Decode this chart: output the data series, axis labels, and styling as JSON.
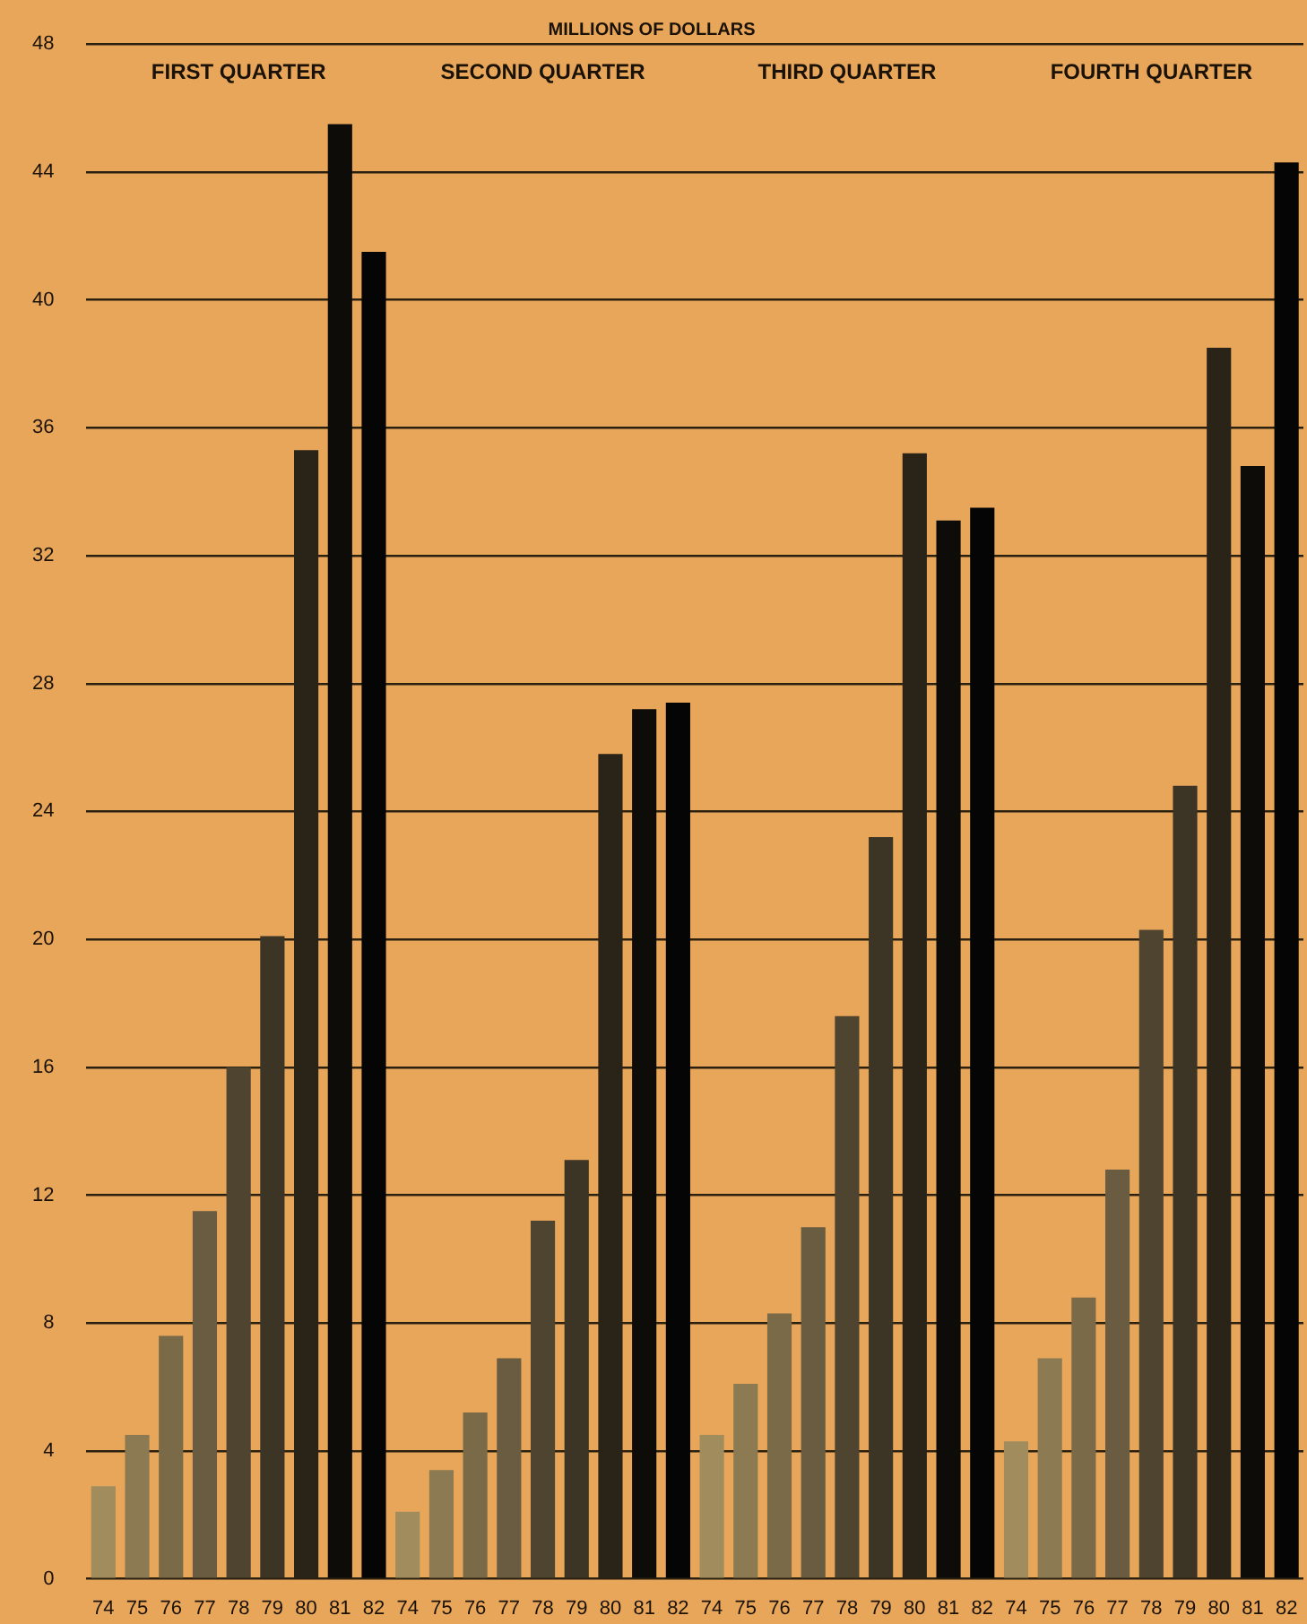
{
  "chart_data": {
    "type": "bar",
    "title": "MILLIONS OF DOLLARS",
    "categories": [
      "74",
      "75",
      "76",
      "77",
      "78",
      "79",
      "80",
      "81",
      "82",
      "74",
      "75",
      "76",
      "77",
      "78",
      "79",
      "80",
      "81",
      "82",
      "74",
      "75",
      "76",
      "77",
      "78",
      "79",
      "80",
      "81",
      "82",
      "74",
      "75",
      "76",
      "77",
      "78",
      "79",
      "80",
      "81",
      "82"
    ],
    "values": [
      2.9,
      4.5,
      7.6,
      11.5,
      16.0,
      20.1,
      35.3,
      45.5,
      41.5,
      2.1,
      3.4,
      5.2,
      6.9,
      11.2,
      13.1,
      25.8,
      27.2,
      27.4,
      4.5,
      6.1,
      8.3,
      11.0,
      17.6,
      23.2,
      35.2,
      33.1,
      33.5,
      4.3,
      6.9,
      8.8,
      12.8,
      20.3,
      24.8,
      38.5,
      34.8,
      44.3
    ],
    "colors": [
      "#a08c5c",
      "#8c7a52",
      "#7a6a48",
      "#6a5c40",
      "#4e4430",
      "#3c3424",
      "#2a2418",
      "#0e0c08",
      "#050505",
      "#a08c5c",
      "#8c7a52",
      "#7a6a48",
      "#6a5c40",
      "#4e4430",
      "#3c3424",
      "#2a2418",
      "#0e0c08",
      "#050505",
      "#a08c5c",
      "#8c7a52",
      "#7a6a48",
      "#6a5c40",
      "#4e4430",
      "#3c3424",
      "#2a2418",
      "#0e0c08",
      "#050505",
      "#a08c5c",
      "#8c7a52",
      "#7a6a48",
      "#6a5c40",
      "#4e4430",
      "#3c3424",
      "#2a2418",
      "#0e0c08",
      "#050505"
    ],
    "ylim": [
      0,
      48
    ],
    "yticks": [
      0,
      4,
      8,
      12,
      16,
      20,
      24,
      28,
      32,
      36,
      40,
      44,
      48
    ],
    "annotations": [
      "FIRST QUARTER",
      "SECOND QUARTER",
      "THIRD QUARTER",
      "FOURTH QUARTER"
    ],
    "grid": "y",
    "legend": false
  }
}
